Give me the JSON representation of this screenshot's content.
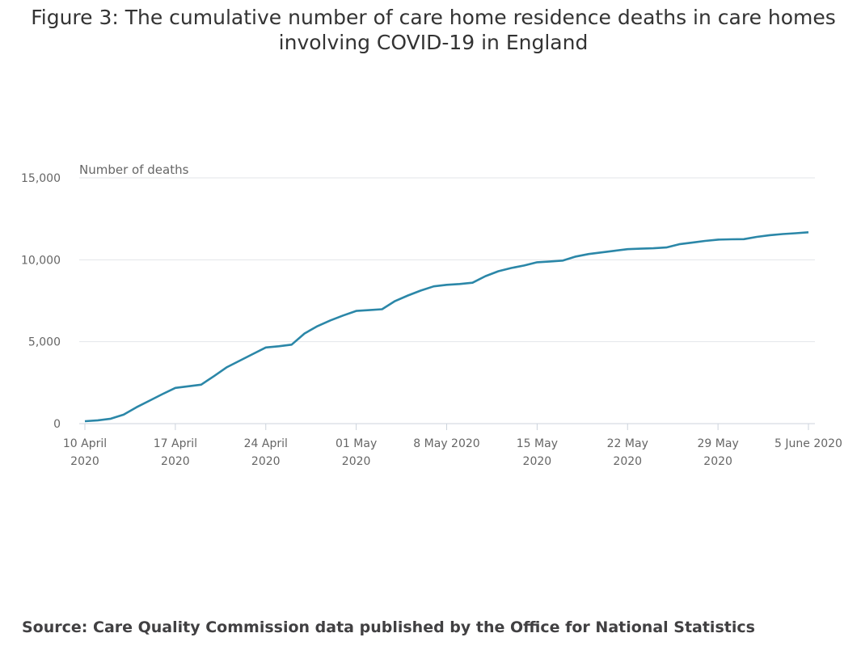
{
  "chart_data": {
    "type": "line",
    "title": "Figure 3: The cumulative number of care home residence deaths in care homes involving COVID-19 in England",
    "ylabel": "Number of deaths",
    "xlabel": "",
    "ylim": [
      0,
      15000
    ],
    "xlim": [
      "2020-04-10",
      "2020-06-05"
    ],
    "grid": true,
    "y_ticks": [
      {
        "value": 0,
        "label": "0"
      },
      {
        "value": 5000,
        "label": "5,000"
      },
      {
        "value": 10000,
        "label": "10,000"
      },
      {
        "value": 15000,
        "label": "15,000"
      }
    ],
    "x_ticks": [
      {
        "date": "2020-04-10",
        "label": [
          "10 April",
          "2020"
        ]
      },
      {
        "date": "2020-04-17",
        "label": [
          "17 April",
          "2020"
        ]
      },
      {
        "date": "2020-04-24",
        "label": [
          "24 April",
          "2020"
        ]
      },
      {
        "date": "2020-05-01",
        "label": [
          "01 May",
          "2020"
        ]
      },
      {
        "date": "2020-05-08",
        "label": [
          "8 May 2020",
          ""
        ]
      },
      {
        "date": "2020-05-15",
        "label": [
          "15 May",
          "2020"
        ]
      },
      {
        "date": "2020-05-22",
        "label": [
          "22 May",
          "2020"
        ]
      },
      {
        "date": "2020-05-29",
        "label": [
          "29 May",
          "2020"
        ]
      },
      {
        "date": "2020-06-05",
        "label": [
          "5 June 2020",
          ""
        ]
      }
    ],
    "color": "#2b87a8",
    "x": [
      "2020-04-10",
      "2020-04-11",
      "2020-04-12",
      "2020-04-13",
      "2020-04-14",
      "2020-04-15",
      "2020-04-16",
      "2020-04-17",
      "2020-04-18",
      "2020-04-19",
      "2020-04-20",
      "2020-04-21",
      "2020-04-22",
      "2020-04-23",
      "2020-04-24",
      "2020-04-25",
      "2020-04-26",
      "2020-04-27",
      "2020-04-28",
      "2020-04-29",
      "2020-04-30",
      "2020-05-01",
      "2020-05-02",
      "2020-05-03",
      "2020-05-04",
      "2020-05-05",
      "2020-05-06",
      "2020-05-07",
      "2020-05-08",
      "2020-05-09",
      "2020-05-10",
      "2020-05-11",
      "2020-05-12",
      "2020-05-13",
      "2020-05-14",
      "2020-05-15",
      "2020-05-16",
      "2020-05-17",
      "2020-05-18",
      "2020-05-19",
      "2020-05-20",
      "2020-05-21",
      "2020-05-22",
      "2020-05-23",
      "2020-05-24",
      "2020-05-25",
      "2020-05-26",
      "2020-05-27",
      "2020-05-28",
      "2020-05-29",
      "2020-05-30",
      "2020-05-31",
      "2020-06-01",
      "2020-06-02",
      "2020-06-03",
      "2020-06-04",
      "2020-06-05"
    ],
    "y": [
      150,
      200,
      300,
      550,
      1000,
      1400,
      1800,
      2180,
      2280,
      2380,
      2900,
      3450,
      3850,
      4250,
      4650,
      4720,
      4820,
      5500,
      5950,
      6300,
      6600,
      6880,
      6930,
      6980,
      7480,
      7820,
      8120,
      8380,
      8470,
      8520,
      8600,
      9000,
      9300,
      9500,
      9650,
      9850,
      9900,
      9950,
      10200,
      10350,
      10450,
      10550,
      10650,
      10680,
      10700,
      10750,
      10950,
      11050,
      11150,
      11230,
      11250,
      11260,
      11400,
      11500,
      11570,
      11620,
      11680
    ]
  },
  "source": "Source: Care Quality Commission data published by the Office for National Statistics"
}
